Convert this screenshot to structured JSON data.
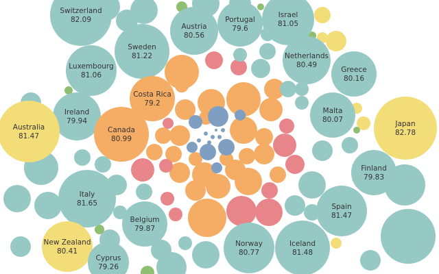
{
  "chart_data": {
    "type": "bubble",
    "bubbles": [
      {
        "label": "Switzerland",
        "value": 82.09,
        "color": "#97c9c4"
      },
      {
        "label": "Portugal",
        "value": 79.6,
        "color": "#97c9c4"
      },
      {
        "label": "Israel",
        "value": 81.05,
        "color": "#97c9c4"
      },
      {
        "label": "Austria",
        "value": 80.56,
        "color": "#97c9c4"
      },
      {
        "label": "Sweden",
        "value": 81.22,
        "color": "#97c9c4"
      },
      {
        "label": "Luxembourg",
        "value": 81.06,
        "color": "#97c9c4"
      },
      {
        "label": "Netherlands",
        "value": 80.49,
        "color": "#97c9c4"
      },
      {
        "label": "Greece",
        "value": 80.16,
        "color": "#97c9c4"
      },
      {
        "label": "Costa Rica",
        "value": 79.2,
        "color": "#f5ac64"
      },
      {
        "label": "Ireland",
        "value": 79.94,
        "color": "#97c9c4"
      },
      {
        "label": "Malta",
        "value": 80.07,
        "color": "#97c9c4"
      },
      {
        "label": "Australia",
        "value": 81.47,
        "color": "#f3dd78"
      },
      {
        "label": "Japan",
        "value": 82.78,
        "color": "#f3dd78"
      },
      {
        "label": "Canada",
        "value": 80.99,
        "color": "#f5ac64"
      },
      {
        "label": "Finland",
        "value": 79.83,
        "color": "#97c9c4"
      },
      {
        "label": "Italy",
        "value": 81.65,
        "color": "#97c9c4"
      },
      {
        "label": "Spain",
        "value": 81.47,
        "color": "#97c9c4"
      },
      {
        "label": "Belgium",
        "value": 79.87,
        "color": "#97c9c4"
      },
      {
        "label": "New Zealand",
        "value": 80.41,
        "color": "#f3dd78"
      },
      {
        "label": "Norway",
        "value": 80.77,
        "color": "#97c9c4"
      },
      {
        "label": "Iceland",
        "value": 81.48,
        "color": "#97c9c4"
      },
      {
        "label": "Cyprus",
        "value": 79.26,
        "color": "#97c9c4"
      }
    ]
  }
}
